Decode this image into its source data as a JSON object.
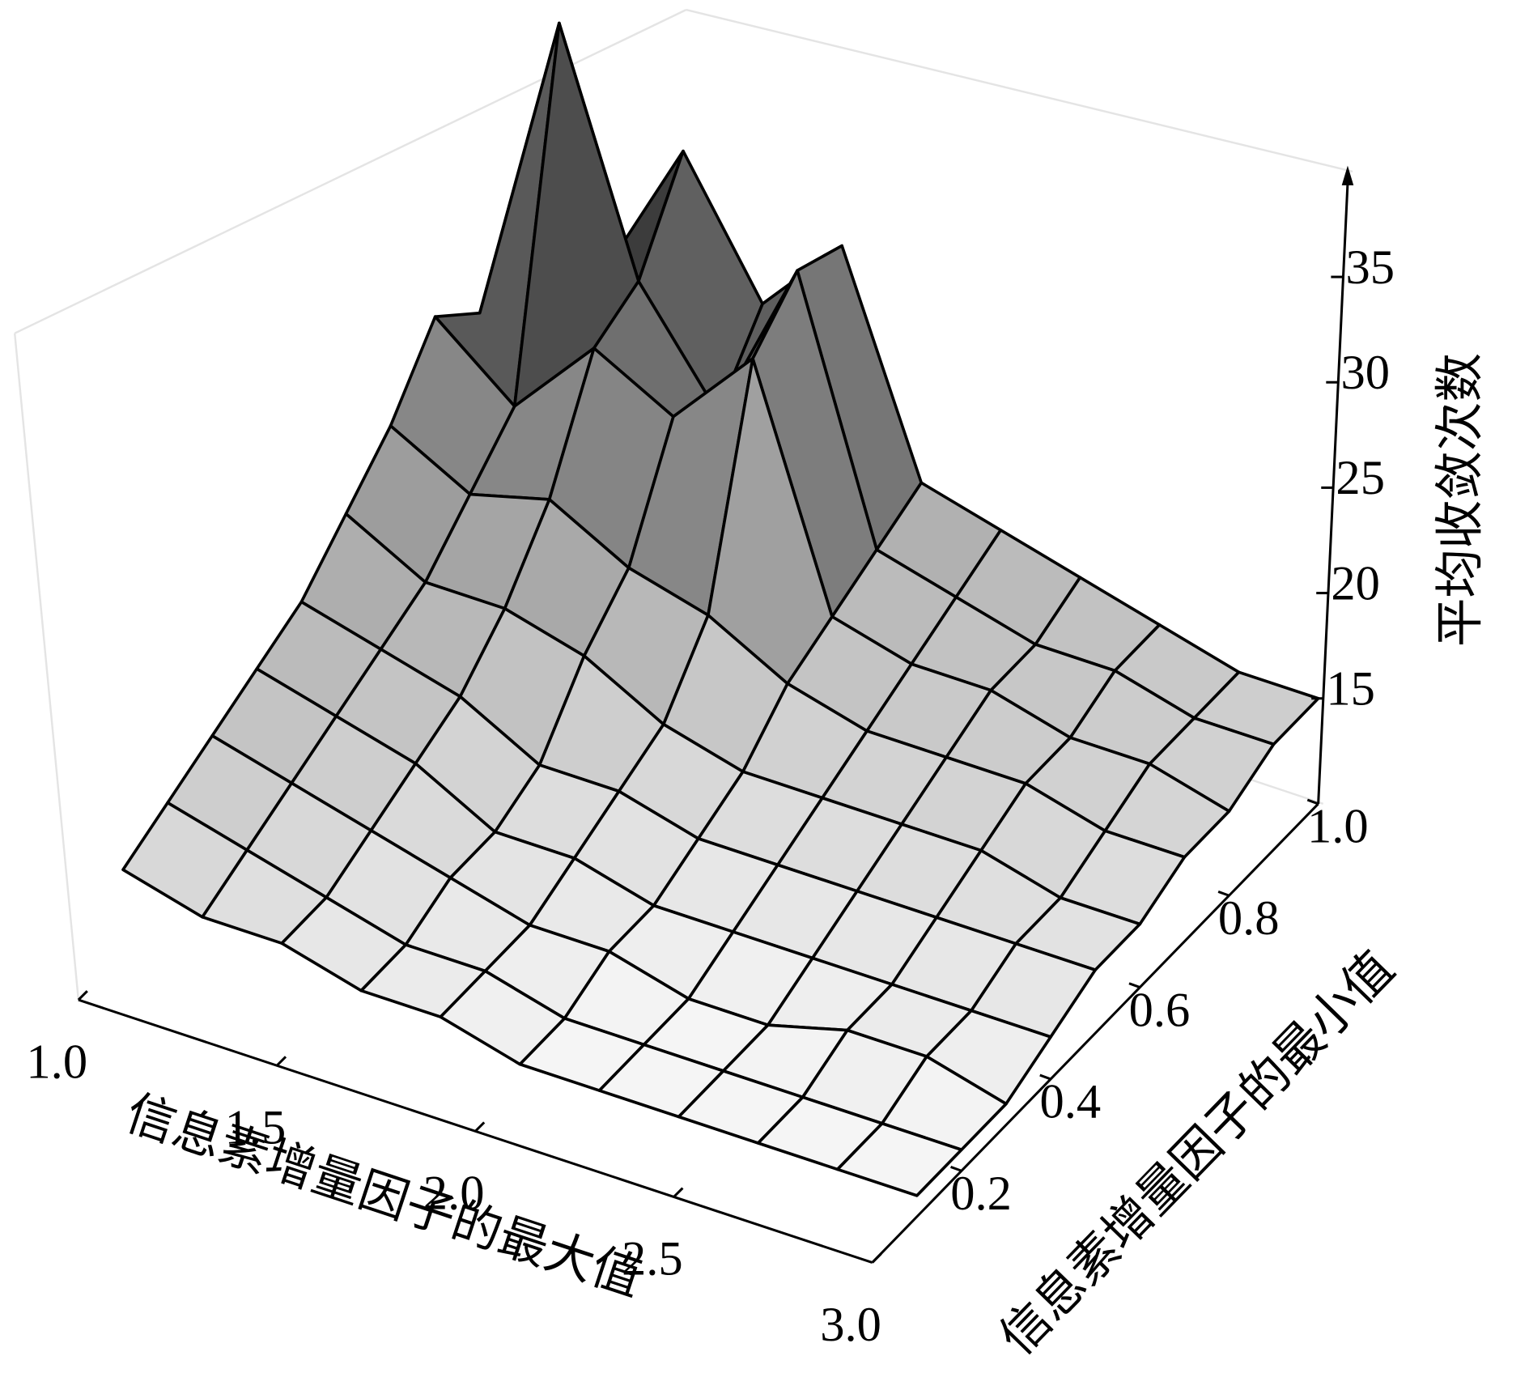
{
  "chart_data": {
    "type": "surface",
    "x_label": "信息素增量因子的最大值",
    "y_label": "信息素增量因子的最小值",
    "z_label": "平均收敛次数",
    "x": [
      1.0,
      1.2,
      1.4,
      1.6,
      1.8,
      2.0,
      2.2,
      2.4,
      2.6,
      2.8,
      3.0
    ],
    "y": [
      0.1,
      0.2,
      0.3,
      0.4,
      0.5,
      0.6,
      0.7,
      0.8,
      0.9,
      1.0
    ],
    "values": [
      [
        14,
        13,
        13,
        12,
        12,
        11,
        11,
        11,
        11,
        11,
        11
      ],
      [
        15,
        14,
        13,
        12,
        12,
        11,
        11,
        11,
        11,
        11,
        11
      ],
      [
        16,
        15,
        14,
        13,
        12,
        12,
        11,
        11,
        12,
        12,
        11
      ],
      [
        17,
        16,
        15,
        13,
        13,
        12,
        12,
        12,
        12,
        12,
        12
      ],
      [
        18,
        17,
        16,
        14,
        14,
        13,
        13,
        13,
        13,
        13,
        13
      ],
      [
        20,
        18,
        18,
        17,
        15,
        14,
        14,
        14,
        14,
        13,
        13
      ],
      [
        22,
        20,
        21,
        19,
        18,
        16,
        15,
        15,
        15,
        14,
        14
      ],
      [
        25,
        22,
        26,
        24,
        28,
        17,
        16,
        16,
        15,
        15,
        14
      ],
      [
        23,
        38,
        27,
        22,
        30,
        18,
        17,
        16,
        16,
        15,
        15
      ],
      [
        22,
        24,
        31,
        25,
        29,
        19,
        18,
        17,
        16,
        15,
        15
      ]
    ],
    "xlim": [
      1,
      3
    ],
    "ylim": [
      0,
      1
    ],
    "zlim": [
      10,
      40
    ],
    "xticks": [
      {
        "value": 1,
        "label": "1.0"
      },
      1.5,
      {
        "value": 2,
        "label": "2.0"
      },
      2.5,
      {
        "value": 3,
        "label": "3.0"
      }
    ],
    "yticks": [
      0.2,
      0.4,
      0.6,
      0.8,
      {
        "value": 1,
        "label": "1.0"
      }
    ],
    "zticks": [
      15,
      20,
      25,
      30,
      35
    ],
    "colormap": [
      "#ffffff",
      "#000000"
    ]
  }
}
